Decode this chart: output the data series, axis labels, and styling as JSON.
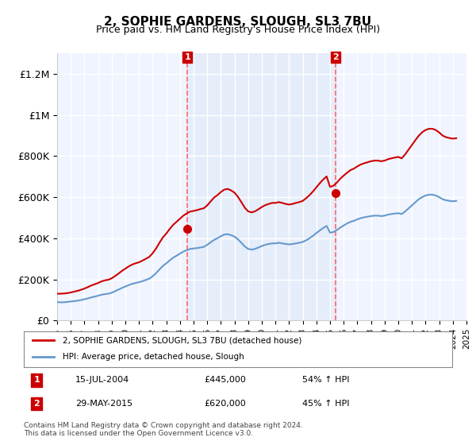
{
  "title": "2, SOPHIE GARDENS, SLOUGH, SL3 7BU",
  "subtitle": "Price paid vs. HM Land Registry's House Price Index (HPI)",
  "ylabel": "",
  "ylim": [
    0,
    1300000
  ],
  "yticks": [
    0,
    200000,
    400000,
    600000,
    800000,
    1000000,
    1200000
  ],
  "ytick_labels": [
    "£0",
    "£200K",
    "£400K",
    "£600K",
    "£800K",
    "£1M",
    "£1.2M"
  ],
  "background_color": "#ffffff",
  "plot_bg_color": "#f0f4ff",
  "grid_color": "#ffffff",
  "sale1_date": 2004.54,
  "sale1_price": 445000,
  "sale1_label": "1",
  "sale1_text": "15-JUL-2004",
  "sale1_amount": "£445,000",
  "sale1_hpi": "54% ↑ HPI",
  "sale2_date": 2015.41,
  "sale2_price": 620000,
  "sale2_label": "2",
  "sale2_text": "29-MAY-2015",
  "sale2_amount": "£620,000",
  "sale2_hpi": "45% ↑ HPI",
  "hpi_line_color": "#6699cc",
  "price_line_color": "#cc0000",
  "sale_marker_color": "#cc0000",
  "sale_box_color": "#cc0000",
  "dashed_line_color": "#ff6666",
  "shade_color": "#dce8f8",
  "legend_label_price": "2, SOPHIE GARDENS, SLOUGH, SL3 7BU (detached house)",
  "legend_label_hpi": "HPI: Average price, detached house, Slough",
  "footnote": "Contains HM Land Registry data © Crown copyright and database right 2024.\nThis data is licensed under the Open Government Licence v3.0.",
  "hpi_data": {
    "years": [
      1995.0,
      1995.25,
      1995.5,
      1995.75,
      1996.0,
      1996.25,
      1996.5,
      1996.75,
      1997.0,
      1997.25,
      1997.5,
      1997.75,
      1998.0,
      1998.25,
      1998.5,
      1998.75,
      1999.0,
      1999.25,
      1999.5,
      1999.75,
      2000.0,
      2000.25,
      2000.5,
      2000.75,
      2001.0,
      2001.25,
      2001.5,
      2001.75,
      2002.0,
      2002.25,
      2002.5,
      2002.75,
      2003.0,
      2003.25,
      2003.5,
      2003.75,
      2004.0,
      2004.25,
      2004.5,
      2004.75,
      2005.0,
      2005.25,
      2005.5,
      2005.75,
      2006.0,
      2006.25,
      2006.5,
      2006.75,
      2007.0,
      2007.25,
      2007.5,
      2007.75,
      2008.0,
      2008.25,
      2008.5,
      2008.75,
      2009.0,
      2009.25,
      2009.5,
      2009.75,
      2010.0,
      2010.25,
      2010.5,
      2010.75,
      2011.0,
      2011.25,
      2011.5,
      2011.75,
      2012.0,
      2012.25,
      2012.5,
      2012.75,
      2013.0,
      2013.25,
      2013.5,
      2013.75,
      2014.0,
      2014.25,
      2014.5,
      2014.75,
      2015.0,
      2015.25,
      2015.5,
      2015.75,
      2016.0,
      2016.25,
      2016.5,
      2016.75,
      2017.0,
      2017.25,
      2017.5,
      2017.75,
      2018.0,
      2018.25,
      2018.5,
      2018.75,
      2019.0,
      2019.25,
      2019.5,
      2019.75,
      2020.0,
      2020.25,
      2020.5,
      2020.75,
      2021.0,
      2021.25,
      2021.5,
      2021.75,
      2022.0,
      2022.25,
      2022.5,
      2022.75,
      2023.0,
      2023.25,
      2023.5,
      2023.75,
      2024.0,
      2024.25
    ],
    "values": [
      89000,
      88000,
      88500,
      90000,
      92000,
      94000,
      96000,
      99000,
      103000,
      107000,
      112000,
      116000,
      120000,
      125000,
      128000,
      130000,
      135000,
      142000,
      150000,
      158000,
      165000,
      172000,
      178000,
      182000,
      186000,
      191000,
      197000,
      203000,
      215000,
      230000,
      248000,
      265000,
      278000,
      292000,
      305000,
      315000,
      325000,
      335000,
      342000,
      348000,
      350000,
      352000,
      355000,
      358000,
      368000,
      380000,
      392000,
      400000,
      410000,
      418000,
      420000,
      415000,
      408000,
      395000,
      378000,
      360000,
      348000,
      345000,
      348000,
      355000,
      362000,
      368000,
      372000,
      375000,
      375000,
      378000,
      375000,
      372000,
      370000,
      372000,
      375000,
      378000,
      382000,
      390000,
      400000,
      412000,
      425000,
      438000,
      450000,
      460000,
      427000,
      430000,
      440000,
      452000,
      462000,
      472000,
      480000,
      485000,
      492000,
      498000,
      502000,
      505000,
      508000,
      510000,
      510000,
      508000,
      510000,
      515000,
      518000,
      520000,
      522000,
      518000,
      530000,
      545000,
      560000,
      575000,
      590000,
      600000,
      608000,
      612000,
      612000,
      608000,
      600000,
      590000,
      585000,
      582000,
      580000,
      582000
    ]
  },
  "price_data": {
    "years": [
      1995.0,
      1995.25,
      1995.5,
      1995.75,
      1996.0,
      1996.25,
      1996.5,
      1996.75,
      1997.0,
      1997.25,
      1997.5,
      1997.75,
      1998.0,
      1998.25,
      1998.5,
      1998.75,
      1999.0,
      1999.25,
      1999.5,
      1999.75,
      2000.0,
      2000.25,
      2000.5,
      2000.75,
      2001.0,
      2001.25,
      2001.5,
      2001.75,
      2002.0,
      2002.25,
      2002.5,
      2002.75,
      2003.0,
      2003.25,
      2003.5,
      2003.75,
      2004.0,
      2004.25,
      2004.5,
      2004.75,
      2005.0,
      2005.25,
      2005.5,
      2005.75,
      2006.0,
      2006.25,
      2006.5,
      2006.75,
      2007.0,
      2007.25,
      2007.5,
      2007.75,
      2008.0,
      2008.25,
      2008.5,
      2008.75,
      2009.0,
      2009.25,
      2009.5,
      2009.75,
      2010.0,
      2010.25,
      2010.5,
      2010.75,
      2011.0,
      2011.25,
      2011.5,
      2011.75,
      2012.0,
      2012.25,
      2012.5,
      2012.75,
      2013.0,
      2013.25,
      2013.5,
      2013.75,
      2014.0,
      2014.25,
      2014.5,
      2014.75,
      2015.0,
      2015.25,
      2015.5,
      2015.75,
      2016.0,
      2016.25,
      2016.5,
      2016.75,
      2017.0,
      2017.25,
      2017.5,
      2017.75,
      2018.0,
      2018.25,
      2018.5,
      2018.75,
      2019.0,
      2019.25,
      2019.5,
      2019.75,
      2020.0,
      2020.25,
      2020.5,
      2020.75,
      2021.0,
      2021.25,
      2021.5,
      2021.75,
      2022.0,
      2022.25,
      2022.5,
      2022.75,
      2023.0,
      2023.25,
      2023.5,
      2023.75,
      2024.0,
      2024.25
    ],
    "values": [
      130000,
      130000,
      131000,
      133000,
      136000,
      140000,
      144000,
      149000,
      155000,
      162000,
      170000,
      176000,
      182000,
      190000,
      195000,
      198000,
      205000,
      216000,
      228000,
      241000,
      252000,
      263000,
      272000,
      278000,
      283000,
      291000,
      300000,
      309000,
      327000,
      350000,
      378000,
      404000,
      423000,
      445000,
      465000,
      480000,
      495000,
      510000,
      521000,
      530000,
      533000,
      537000,
      542000,
      546000,
      560000,
      579000,
      598000,
      610000,
      625000,
      637000,
      640000,
      633000,
      622000,
      602000,
      576000,
      549000,
      531000,
      526000,
      531000,
      541000,
      552000,
      561000,
      567000,
      572000,
      572000,
      576000,
      572000,
      567000,
      564000,
      567000,
      572000,
      576000,
      582000,
      595000,
      610000,
      628000,
      648000,
      668000,
      686000,
      701000,
      650000,
      656000,
      671000,
      690000,
      705000,
      719000,
      732000,
      739000,
      750000,
      759000,
      765000,
      770000,
      775000,
      778000,
      778000,
      775000,
      778000,
      785000,
      789000,
      793000,
      796000,
      789000,
      808000,
      831000,
      854000,
      877000,
      899000,
      916000,
      927000,
      933000,
      933000,
      927000,
      915000,
      900000,
      892000,
      888000,
      885000,
      887000
    ]
  },
  "xmin": 1995.0,
  "xmax": 2025.0,
  "xtick_years": [
    1995,
    1996,
    1997,
    1998,
    1999,
    2000,
    2001,
    2002,
    2003,
    2004,
    2005,
    2006,
    2007,
    2008,
    2009,
    2010,
    2011,
    2012,
    2013,
    2014,
    2015,
    2016,
    2017,
    2018,
    2019,
    2020,
    2021,
    2022,
    2023,
    2024,
    2025
  ]
}
